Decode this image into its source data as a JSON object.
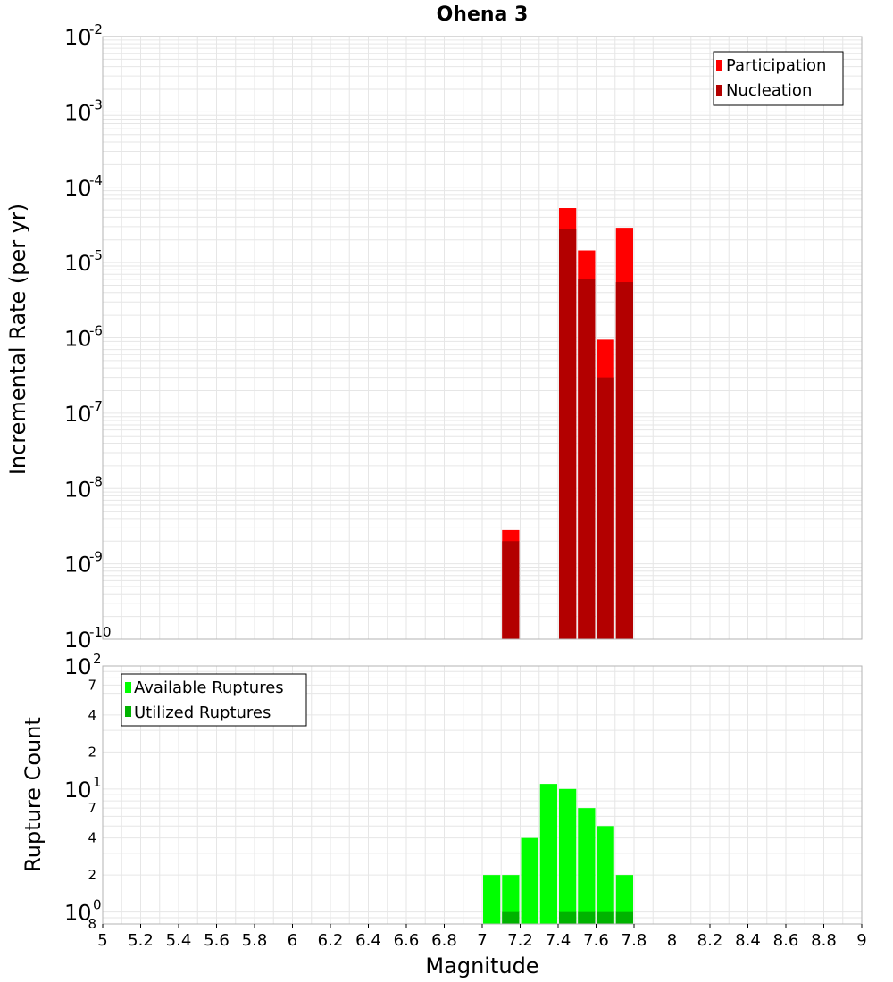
{
  "title": "Ohena 3",
  "xlabel": "Magnitude",
  "xticks": [
    "5",
    "5.2",
    "5.4",
    "5.6",
    "5.8",
    "6",
    "6.2",
    "6.4",
    "6.6",
    "6.8",
    "7",
    "7.2",
    "7.4",
    "7.6",
    "7.8",
    "8",
    "8.2",
    "8.4",
    "8.6",
    "8.8",
    "9"
  ],
  "colors": {
    "participation": "#ff0000",
    "nucleation": "#b30000",
    "available": "#00ff00",
    "utilized": "#00b300",
    "grid": "#e6e6e6",
    "frame": "#b3b3b3"
  },
  "chart_data": [
    {
      "type": "bar",
      "name": "rate-plot",
      "ylabel": "Incremental Rate (per yr)",
      "yscale": "log",
      "xlim": [
        5,
        9
      ],
      "ylim": [
        1e-10,
        0.01
      ],
      "bin_width": 0.1,
      "y_tick_labels": [
        {
          "base": "10",
          "exp": "-10",
          "value": 1e-10
        },
        {
          "base": "10",
          "exp": "-9",
          "value": 1e-09
        },
        {
          "base": "10",
          "exp": "-8",
          "value": 1e-08
        },
        {
          "base": "10",
          "exp": "-7",
          "value": 1e-07
        },
        {
          "base": "10",
          "exp": "-6",
          "value": 1e-06
        },
        {
          "base": "10",
          "exp": "-5",
          "value": 1e-05
        },
        {
          "base": "10",
          "exp": "-4",
          "value": 0.0001
        },
        {
          "base": "10",
          "exp": "-3",
          "value": 0.001
        },
        {
          "base": "10",
          "exp": "-2",
          "value": 0.01
        }
      ],
      "legend": [
        "Participation",
        "Nucleation"
      ],
      "series": [
        {
          "name": "Participation",
          "x": [
            7.15,
            7.45,
            7.55,
            7.65,
            7.75
          ],
          "values": [
            2.8e-09,
            5.3e-05,
            1.45e-05,
            9.5e-07,
            2.9e-05
          ]
        },
        {
          "name": "Nucleation",
          "x": [
            7.15,
            7.45,
            7.55,
            7.65,
            7.75
          ],
          "values": [
            2e-09,
            2.8e-05,
            6e-06,
            3e-07,
            5.5e-06
          ]
        }
      ]
    },
    {
      "type": "bar",
      "name": "count-plot",
      "ylabel": "Rupture Count",
      "yscale": "log",
      "xlim": [
        5,
        9
      ],
      "ylim": [
        0.8,
        100
      ],
      "bin_width": 0.1,
      "y_tick_labels": [
        {
          "base": "10",
          "exp": "0",
          "value": 1
        },
        {
          "base": "10",
          "exp": "1",
          "value": 10
        },
        {
          "base": "10",
          "exp": "2",
          "value": 100
        }
      ],
      "y_minor_tick_labels": [
        {
          "label": "8",
          "value": 0.8
        },
        {
          "label": "2",
          "value": 2
        },
        {
          "label": "4",
          "value": 4
        },
        {
          "label": "7",
          "value": 7
        },
        {
          "label": "2",
          "value": 20
        },
        {
          "label": "4",
          "value": 40
        },
        {
          "label": "7",
          "value": 70
        }
      ],
      "legend": [
        "Available Ruptures",
        "Utilized Ruptures"
      ],
      "series": [
        {
          "name": "Available Ruptures",
          "x": [
            7.05,
            7.15,
            7.25,
            7.35,
            7.45,
            7.55,
            7.65,
            7.75
          ],
          "values": [
            2,
            2,
            4,
            11,
            10,
            7,
            5,
            2
          ]
        },
        {
          "name": "Utilized Ruptures",
          "x": [
            7.15,
            7.45,
            7.55,
            7.65,
            7.75
          ],
          "values": [
            1,
            1,
            1,
            1,
            1
          ]
        }
      ]
    }
  ]
}
